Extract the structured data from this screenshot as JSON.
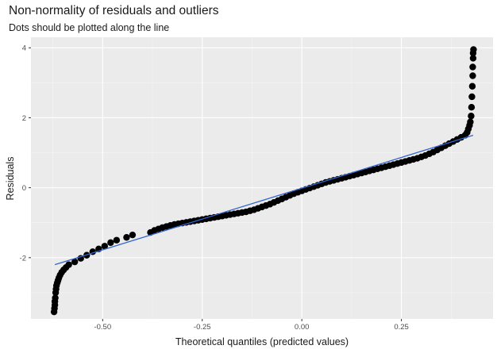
{
  "chart_data": {
    "type": "scatter",
    "title": "Non-normality of residuals and outliers",
    "subtitle": "Dots should be plotted along the line",
    "xlabel": "Theoretical quantiles (predicted values)",
    "ylabel": "Residuals",
    "xlim": [
      -0.68,
      0.48
    ],
    "ylim": [
      -3.75,
      4.3
    ],
    "x_ticks": [
      -0.5,
      -0.25,
      0.0,
      0.25
    ],
    "x_tick_labels": [
      "-0.50",
      "-0.25",
      "0.00",
      "0.25"
    ],
    "y_ticks": [
      -2,
      0,
      2,
      4
    ],
    "y_tick_labels": [
      "-2",
      "0",
      "2",
      "4"
    ],
    "grid": true,
    "reference_line": {
      "x": [
        -0.62,
        0.43
      ],
      "y": [
        -2.2,
        1.5
      ],
      "color": "#3366cc"
    },
    "point_color": "#000000",
    "points": [
      [
        -0.622,
        -3.55
      ],
      [
        -0.621,
        -3.45
      ],
      [
        -0.62,
        -3.35
      ],
      [
        -0.62,
        -3.25
      ],
      [
        -0.619,
        -3.15
      ],
      [
        -0.618,
        -3.0
      ],
      [
        -0.617,
        -2.9
      ],
      [
        -0.616,
        -2.8
      ],
      [
        -0.614,
        -2.72
      ],
      [
        -0.612,
        -2.65
      ],
      [
        -0.61,
        -2.58
      ],
      [
        -0.607,
        -2.5
      ],
      [
        -0.603,
        -2.42
      ],
      [
        -0.598,
        -2.35
      ],
      [
        -0.592,
        -2.28
      ],
      [
        -0.585,
        -2.2
      ],
      [
        -0.57,
        -2.12
      ],
      [
        -0.555,
        -2.02
      ],
      [
        -0.54,
        -1.93
      ],
      [
        -0.525,
        -1.83
      ],
      [
        -0.51,
        -1.75
      ],
      [
        -0.495,
        -1.67
      ],
      [
        -0.48,
        -1.57
      ],
      [
        -0.465,
        -1.5
      ],
      [
        -0.44,
        -1.42
      ],
      [
        -0.425,
        -1.35
      ],
      [
        -0.38,
        -1.28
      ],
      [
        -0.37,
        -1.22
      ],
      [
        -0.36,
        -1.18
      ],
      [
        -0.35,
        -1.14
      ],
      [
        -0.34,
        -1.11
      ],
      [
        -0.33,
        -1.08
      ],
      [
        -0.32,
        -1.05
      ],
      [
        -0.31,
        -1.03
      ],
      [
        -0.3,
        -1.01
      ],
      [
        -0.29,
        -0.99
      ],
      [
        -0.28,
        -0.97
      ],
      [
        -0.27,
        -0.95
      ],
      [
        -0.26,
        -0.93
      ],
      [
        -0.25,
        -0.91
      ],
      [
        -0.24,
        -0.89
      ],
      [
        -0.23,
        -0.87
      ],
      [
        -0.22,
        -0.85
      ],
      [
        -0.21,
        -0.83
      ],
      [
        -0.2,
        -0.81
      ],
      [
        -0.19,
        -0.79
      ],
      [
        -0.18,
        -0.77
      ],
      [
        -0.17,
        -0.75
      ],
      [
        -0.16,
        -0.73
      ],
      [
        -0.15,
        -0.71
      ],
      [
        -0.14,
        -0.69
      ],
      [
        -0.13,
        -0.66
      ],
      [
        -0.12,
        -0.63
      ],
      [
        -0.11,
        -0.59
      ],
      [
        -0.1,
        -0.55
      ],
      [
        -0.09,
        -0.51
      ],
      [
        -0.08,
        -0.47
      ],
      [
        -0.07,
        -0.42
      ],
      [
        -0.06,
        -0.37
      ],
      [
        -0.05,
        -0.32
      ],
      [
        -0.04,
        -0.27
      ],
      [
        -0.03,
        -0.22
      ],
      [
        -0.02,
        -0.17
      ],
      [
        -0.01,
        -0.13
      ],
      [
        0.0,
        -0.09
      ],
      [
        0.01,
        -0.05
      ],
      [
        0.02,
        -0.01
      ],
      [
        0.03,
        0.03
      ],
      [
        0.04,
        0.07
      ],
      [
        0.05,
        0.11
      ],
      [
        0.06,
        0.15
      ],
      [
        0.07,
        0.18
      ],
      [
        0.08,
        0.21
      ],
      [
        0.09,
        0.24
      ],
      [
        0.1,
        0.27
      ],
      [
        0.11,
        0.3
      ],
      [
        0.12,
        0.33
      ],
      [
        0.13,
        0.36
      ],
      [
        0.14,
        0.39
      ],
      [
        0.15,
        0.42
      ],
      [
        0.16,
        0.45
      ],
      [
        0.17,
        0.48
      ],
      [
        0.18,
        0.51
      ],
      [
        0.19,
        0.54
      ],
      [
        0.2,
        0.57
      ],
      [
        0.21,
        0.6
      ],
      [
        0.22,
        0.63
      ],
      [
        0.23,
        0.66
      ],
      [
        0.24,
        0.69
      ],
      [
        0.25,
        0.72
      ],
      [
        0.26,
        0.75
      ],
      [
        0.27,
        0.78
      ],
      [
        0.28,
        0.81
      ],
      [
        0.29,
        0.84
      ],
      [
        0.3,
        0.88
      ],
      [
        0.31,
        0.92
      ],
      [
        0.32,
        0.97
      ],
      [
        0.33,
        1.02
      ],
      [
        0.34,
        1.08
      ],
      [
        0.35,
        1.14
      ],
      [
        0.36,
        1.2
      ],
      [
        0.37,
        1.26
      ],
      [
        0.38,
        1.32
      ],
      [
        0.39,
        1.38
      ],
      [
        0.4,
        1.44
      ],
      [
        0.41,
        1.5
      ],
      [
        0.415,
        1.58
      ],
      [
        0.418,
        1.68
      ],
      [
        0.421,
        1.78
      ],
      [
        0.423,
        1.88
      ],
      [
        0.425,
        2.05
      ],
      [
        0.426,
        2.3
      ],
      [
        0.427,
        2.6
      ],
      [
        0.428,
        2.9
      ],
      [
        0.429,
        3.2
      ],
      [
        0.429,
        3.45
      ],
      [
        0.43,
        3.7
      ],
      [
        0.43,
        3.85
      ],
      [
        0.431,
        3.95
      ]
    ]
  }
}
